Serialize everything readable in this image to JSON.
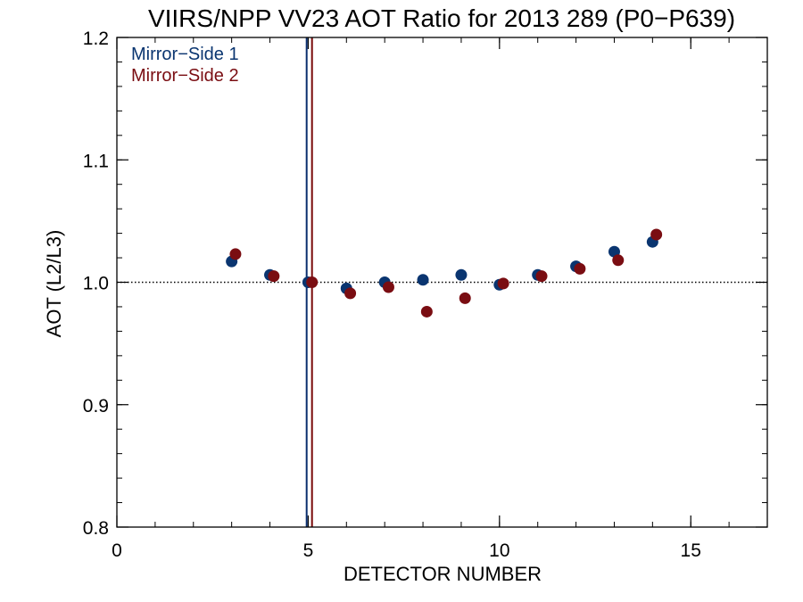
{
  "chart_data": {
    "type": "scatter",
    "title": "VIIRS/NPP VV23 AOT Ratio for 2013 289 (P0−P639)",
    "xlabel": "DETECTOR NUMBER",
    "ylabel": "AOT (L2/L3)",
    "xlim": [
      0,
      17
    ],
    "ylim": [
      0.8,
      1.2
    ],
    "x_ticks": [
      0,
      5,
      10,
      15
    ],
    "y_ticks": [
      0.8,
      0.9,
      1.0,
      1.1,
      1.2
    ],
    "x_tick_labels": [
      "0",
      "5",
      "10",
      "15"
    ],
    "y_tick_labels": [
      "0.8",
      "0.9",
      "1.0",
      "1.1",
      "1.2"
    ],
    "x_minor_step": 1,
    "y_minor_step": 0.02,
    "reference_line": {
      "y": 1.0,
      "style": "dotted",
      "color": "#000000"
    },
    "vertical_lines": [
      {
        "x": 4.96,
        "color": "#0a2e6e"
      },
      {
        "x": 5.1,
        "color": "#7a0a0a"
      }
    ],
    "legend_position": "top-left",
    "grid": false,
    "series": [
      {
        "name": "Mirror−Side 1",
        "color": "#0a3570",
        "x": [
          3,
          4,
          5,
          6,
          7,
          8,
          9,
          10,
          11,
          12,
          13,
          14
        ],
        "y": [
          1.017,
          1.006,
          1.0,
          0.995,
          1.0,
          1.002,
          1.006,
          0.998,
          1.006,
          1.013,
          1.025,
          1.033
        ]
      },
      {
        "name": "Mirror−Side 2",
        "color": "#7a0d12",
        "x": [
          3.1,
          4.1,
          5.1,
          6.1,
          7.1,
          8.1,
          9.1,
          10.1,
          11.1,
          12.1,
          13.1,
          14.1
        ],
        "y": [
          1.023,
          1.005,
          1.0,
          0.991,
          0.996,
          0.976,
          0.987,
          0.999,
          1.005,
          1.011,
          1.018,
          1.039
        ]
      }
    ]
  }
}
